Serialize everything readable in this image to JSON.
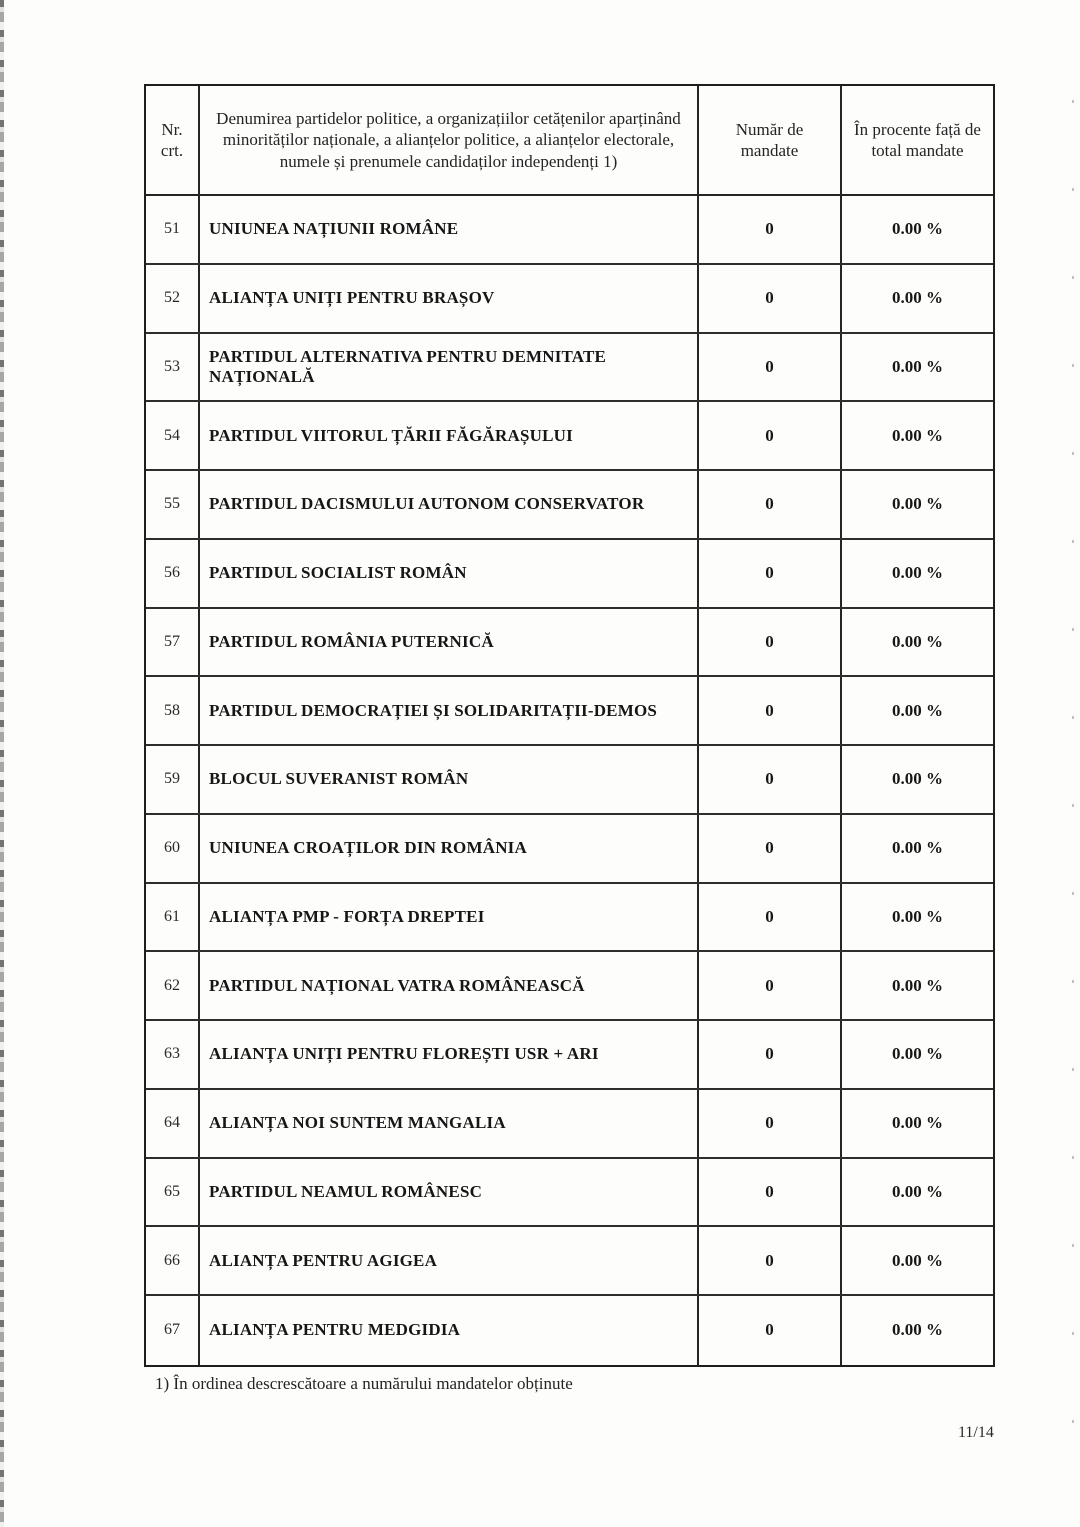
{
  "document": {
    "footnote": "1) În ordinea descrescătoare a numărului mandatelor obținute",
    "page_indicator": "11/14"
  },
  "table": {
    "headers": {
      "nr": "Nr.\ncrt.",
      "name": "Denumirea partidelor politice, a organizațiilor cetățenilor aparținând minorităților naționale, a alianțelor politice, a alianțelor electorale, numele și prenumele candidaților independenți 1)",
      "mandates": "Număr de\nmandate",
      "percent": "În procente față de\ntotal mandate"
    },
    "rows": [
      {
        "nr": "51",
        "name": "UNIUNEA NAȚIUNII ROMÂNE",
        "mandates": "0",
        "percent": "0.00 %"
      },
      {
        "nr": "52",
        "name": "ALIANȚA UNIȚI PENTRU BRAȘOV",
        "mandates": "0",
        "percent": "0.00 %"
      },
      {
        "nr": "53",
        "name": "PARTIDUL ALTERNATIVA PENTRU DEMNITATE NAȚIONALĂ",
        "mandates": "0",
        "percent": "0.00 %"
      },
      {
        "nr": "54",
        "name": "PARTIDUL VIITORUL ȚĂRII FĂGĂRAȘULUI",
        "mandates": "0",
        "percent": "0.00 %"
      },
      {
        "nr": "55",
        "name": "PARTIDUL DACISMULUI AUTONOM CONSERVATOR",
        "mandates": "0",
        "percent": "0.00 %"
      },
      {
        "nr": "56",
        "name": "PARTIDUL SOCIALIST ROMÂN",
        "mandates": "0",
        "percent": "0.00 %"
      },
      {
        "nr": "57",
        "name": "PARTIDUL ROMÂNIA PUTERNICĂ",
        "mandates": "0",
        "percent": "0.00 %"
      },
      {
        "nr": "58",
        "name": "PARTIDUL DEMOCRAȚIEI ȘI SOLIDARITAȚII-DEMOS",
        "mandates": "0",
        "percent": "0.00 %"
      },
      {
        "nr": "59",
        "name": "BLOCUL SUVERANIST ROMÂN",
        "mandates": "0",
        "percent": "0.00 %"
      },
      {
        "nr": "60",
        "name": "UNIUNEA CROAȚILOR DIN ROMÂNIA",
        "mandates": "0",
        "percent": "0.00 %"
      },
      {
        "nr": "61",
        "name": "ALIANȚA PMP - FORȚA DREPTEI",
        "mandates": "0",
        "percent": "0.00 %"
      },
      {
        "nr": "62",
        "name": "PARTIDUL NAȚIONAL VATRA ROMÂNEASCĂ",
        "mandates": "0",
        "percent": "0.00 %"
      },
      {
        "nr": "63",
        "name": "ALIANȚA UNIȚI PENTRU FLOREȘTI USR + ARI",
        "mandates": "0",
        "percent": "0.00 %"
      },
      {
        "nr": "64",
        "name": "ALIANȚA NOI SUNTEM MANGALIA",
        "mandates": "0",
        "percent": "0.00 %"
      },
      {
        "nr": "65",
        "name": "PARTIDUL NEAMUL ROMÂNESC",
        "mandates": "0",
        "percent": "0.00 %"
      },
      {
        "nr": "66",
        "name": "ALIANȚA PENTRU AGIGEA",
        "mandates": "0",
        "percent": "0.00 %"
      },
      {
        "nr": "67",
        "name": "ALIANȚA PENTRU MEDGIDIA",
        "mandates": "0",
        "percent": "0.00 %"
      }
    ]
  }
}
